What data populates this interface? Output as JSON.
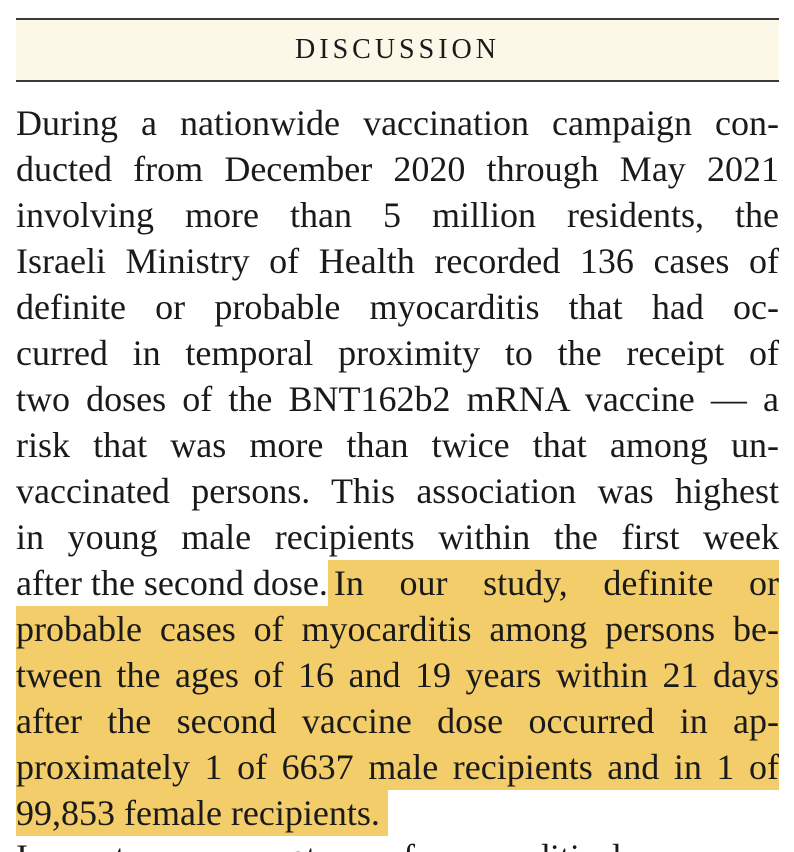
{
  "header": {
    "title": "DISCUSSION"
  },
  "paragraph": {
    "lines": [
      "During a nationwide vaccination campaign con-",
      "ducted from December 2020 through May 2021",
      "involving more than 5 million residents, the",
      "Israeli Ministry of Health recorded 136 cases of",
      "definite or probable myocarditis that had oc-",
      "curred in temporal proximity to the receipt of",
      "two doses of the BNT162b2 mRNA vaccine — a",
      "risk that was more than twice that among un-",
      "vaccinated persons. This association was highest",
      "in young male recipients within the first week"
    ],
    "mixed_line_plain": "after the second dose.",
    "mixed_line_highlight": "In our study, definite or",
    "highlight_lines": [
      "probable cases of myocarditis among persons be-",
      "tween the ages of 16 and 19 years within 21 days",
      "after the second vaccine dose occurred in ap-",
      "proximately 1 of 6637 male recipients and in 1 of"
    ],
    "final_highlight_line": "99,853 female recipients.",
    "cutoff_line": "In most cases, symptoms of myocarditis de-"
  },
  "colors": {
    "highlight": "#f3cd6a",
    "header_bg": "#fbf8e8",
    "text": "#1a1a1a"
  }
}
